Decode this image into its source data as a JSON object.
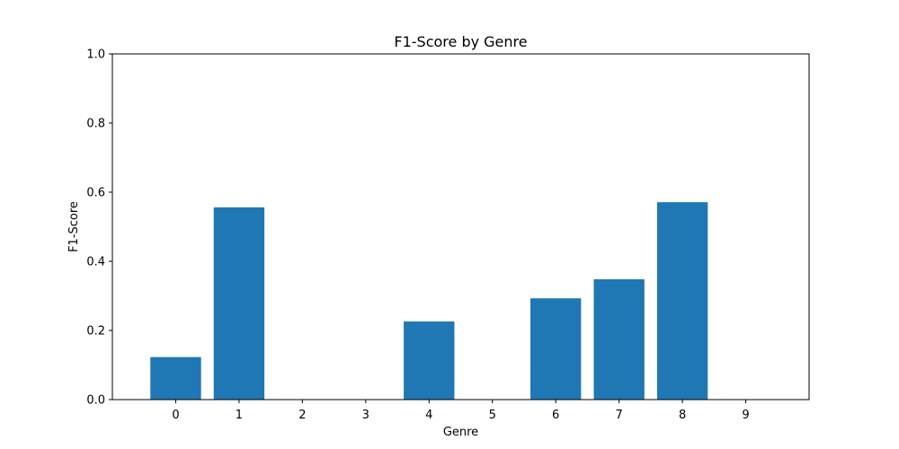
{
  "chart_data": {
    "type": "bar",
    "title": "F1-Score by Genre",
    "xlabel": "Genre",
    "ylabel": "F1-Score",
    "categories": [
      "0",
      "1",
      "2",
      "3",
      "4",
      "5",
      "6",
      "7",
      "8",
      "9"
    ],
    "values": [
      0.123,
      0.556,
      0.0,
      0.0,
      0.226,
      0.0,
      0.293,
      0.348,
      0.571,
      0.0
    ],
    "ylim": [
      0,
      1
    ],
    "yticks": [
      "0.0",
      "0.2",
      "0.4",
      "0.6",
      "0.8",
      "1.0"
    ],
    "grid": false,
    "legend": "none",
    "bar_color": "#1f77b4"
  }
}
